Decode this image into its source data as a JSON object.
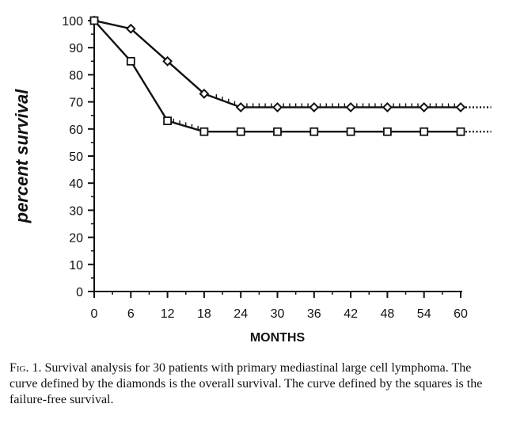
{
  "chart_data": {
    "type": "line",
    "xlabel": "MONTHS",
    "ylabel": "percent survival",
    "xlim": [
      0,
      60
    ],
    "ylim": [
      0,
      100
    ],
    "xticks": [
      0,
      6,
      12,
      18,
      24,
      30,
      36,
      42,
      48,
      54,
      60
    ],
    "yticks": [
      0,
      10,
      20,
      30,
      40,
      50,
      60,
      70,
      80,
      90,
      100
    ],
    "grid": false,
    "legend": "none",
    "series": [
      {
        "marker": "diamond",
        "x": [
          0,
          6,
          12,
          18,
          24,
          30,
          36,
          42,
          48,
          54,
          60
        ],
        "y": [
          100,
          97,
          85,
          73,
          68,
          68,
          68,
          68,
          68,
          68,
          68
        ],
        "censor_ticks": [
          20,
          21,
          22,
          23,
          25,
          26,
          27,
          28,
          29,
          31,
          32,
          33,
          34,
          35,
          37,
          38,
          39,
          40,
          41,
          43,
          44,
          45,
          46,
          47,
          49,
          50,
          51,
          52,
          53,
          55,
          56,
          57,
          58,
          59
        ],
        "dotted_extension_to": 65
      },
      {
        "marker": "square",
        "x": [
          0,
          6,
          12,
          18,
          24,
          30,
          36,
          42,
          48,
          54,
          60
        ],
        "y": [
          100,
          85,
          63,
          59,
          59,
          59,
          59,
          59,
          59,
          59,
          59
        ],
        "censor_ticks": [
          13,
          14,
          15,
          16,
          17
        ],
        "dotted_extension_to": 65
      }
    ]
  },
  "caption": {
    "label": "Fig. 1.",
    "text": "Survival analysis for 30 patients with primary mediastinal large cell lymphoma. The curve defined by the diamonds is the overall survival. The curve defined by the squares is the failure-free survival."
  }
}
